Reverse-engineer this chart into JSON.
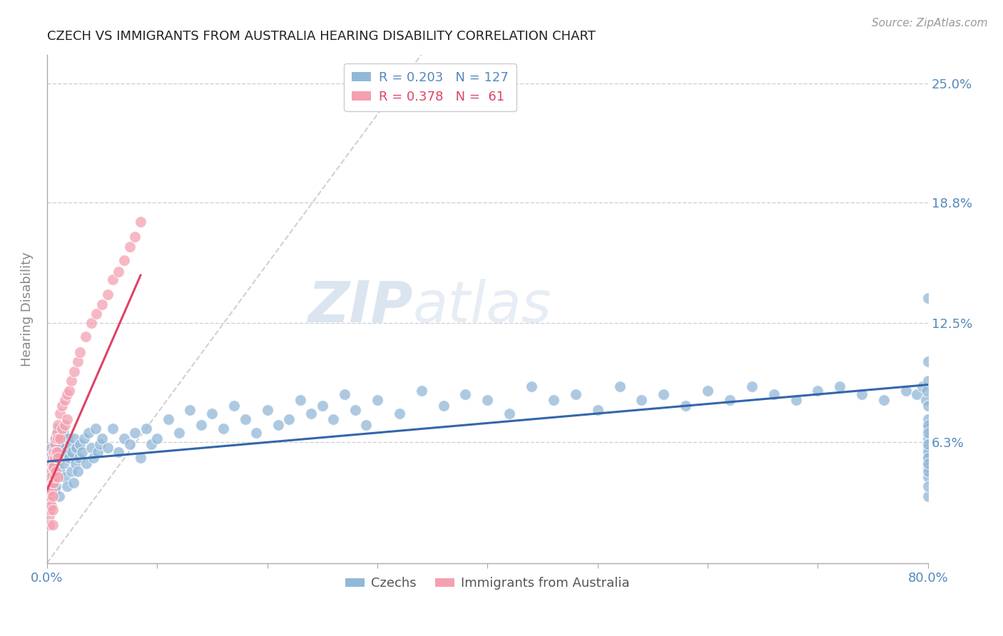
{
  "title": "CZECH VS IMMIGRANTS FROM AUSTRALIA HEARING DISABILITY CORRELATION CHART",
  "source": "Source: ZipAtlas.com",
  "ylabel": "Hearing Disability",
  "xlim": [
    0.0,
    0.8
  ],
  "ylim": [
    0.0,
    0.265
  ],
  "ytick_positions": [
    0.063,
    0.125,
    0.188,
    0.25
  ],
  "ytick_labels": [
    "6.3%",
    "12.5%",
    "18.8%",
    "25.0%"
  ],
  "R_blue": 0.203,
  "N_blue": 127,
  "R_pink": 0.378,
  "N_pink": 61,
  "blue_color": "#92B8D8",
  "pink_color": "#F4A0B0",
  "blue_trend_color": "#3366AA",
  "pink_trend_color": "#DD4466",
  "legend_label_blue": "Czechs",
  "legend_label_pink": "Immigrants from Australia",
  "watermark_text": "ZIPatlas",
  "background_color": "#FFFFFF",
  "grid_color": "#CCCCCC",
  "title_color": "#222222",
  "axis_label_color": "#5588BB",
  "blue_x": [
    0.002,
    0.003,
    0.004,
    0.005,
    0.005,
    0.006,
    0.006,
    0.007,
    0.007,
    0.008,
    0.008,
    0.009,
    0.009,
    0.01,
    0.01,
    0.01,
    0.011,
    0.011,
    0.012,
    0.012,
    0.013,
    0.014,
    0.015,
    0.015,
    0.016,
    0.017,
    0.018,
    0.019,
    0.02,
    0.021,
    0.022,
    0.023,
    0.024,
    0.025,
    0.026,
    0.027,
    0.028,
    0.029,
    0.03,
    0.032,
    0.034,
    0.036,
    0.038,
    0.04,
    0.042,
    0.044,
    0.046,
    0.048,
    0.05,
    0.055,
    0.06,
    0.065,
    0.07,
    0.075,
    0.08,
    0.085,
    0.09,
    0.095,
    0.1,
    0.11,
    0.12,
    0.13,
    0.14,
    0.15,
    0.16,
    0.17,
    0.18,
    0.19,
    0.2,
    0.21,
    0.22,
    0.23,
    0.24,
    0.25,
    0.26,
    0.27,
    0.28,
    0.29,
    0.3,
    0.32,
    0.34,
    0.36,
    0.38,
    0.4,
    0.42,
    0.44,
    0.46,
    0.48,
    0.5,
    0.52,
    0.54,
    0.56,
    0.58,
    0.6,
    0.62,
    0.64,
    0.66,
    0.68,
    0.7,
    0.72,
    0.74,
    0.76,
    0.78,
    0.79,
    0.795,
    0.798,
    0.799,
    0.8,
    0.8,
    0.8,
    0.8,
    0.8,
    0.8,
    0.8,
    0.8,
    0.8,
    0.8,
    0.8,
    0.8,
    0.8,
    0.8,
    0.8,
    0.8,
    0.8,
    0.8,
    0.8,
    0.8
  ],
  "blue_y": [
    0.055,
    0.048,
    0.06,
    0.052,
    0.045,
    0.058,
    0.042,
    0.065,
    0.038,
    0.062,
    0.04,
    0.055,
    0.068,
    0.05,
    0.045,
    0.07,
    0.058,
    0.035,
    0.062,
    0.048,
    0.055,
    0.06,
    0.052,
    0.068,
    0.045,
    0.058,
    0.04,
    0.065,
    0.055,
    0.062,
    0.048,
    0.058,
    0.042,
    0.065,
    0.052,
    0.06,
    0.048,
    0.055,
    0.062,
    0.058,
    0.065,
    0.052,
    0.068,
    0.06,
    0.055,
    0.07,
    0.058,
    0.062,
    0.065,
    0.06,
    0.07,
    0.058,
    0.065,
    0.062,
    0.068,
    0.055,
    0.07,
    0.062,
    0.065,
    0.075,
    0.068,
    0.08,
    0.072,
    0.078,
    0.07,
    0.082,
    0.075,
    0.068,
    0.08,
    0.072,
    0.075,
    0.085,
    0.078,
    0.082,
    0.075,
    0.088,
    0.08,
    0.072,
    0.085,
    0.078,
    0.09,
    0.082,
    0.088,
    0.085,
    0.078,
    0.092,
    0.085,
    0.088,
    0.08,
    0.092,
    0.085,
    0.088,
    0.082,
    0.09,
    0.085,
    0.092,
    0.088,
    0.085,
    0.09,
    0.092,
    0.088,
    0.085,
    0.09,
    0.088,
    0.092,
    0.085,
    0.09,
    0.138,
    0.06,
    0.055,
    0.075,
    0.082,
    0.095,
    0.105,
    0.045,
    0.058,
    0.065,
    0.07,
    0.055,
    0.05,
    0.048,
    0.072,
    0.068,
    0.035,
    0.04,
    0.052,
    0.062
  ],
  "pink_x": [
    0.001,
    0.001,
    0.001,
    0.002,
    0.002,
    0.002,
    0.002,
    0.002,
    0.003,
    0.003,
    0.003,
    0.003,
    0.004,
    0.004,
    0.004,
    0.004,
    0.005,
    0.005,
    0.005,
    0.005,
    0.005,
    0.005,
    0.006,
    0.006,
    0.006,
    0.007,
    0.007,
    0.007,
    0.008,
    0.008,
    0.008,
    0.009,
    0.009,
    0.01,
    0.01,
    0.01,
    0.01,
    0.012,
    0.012,
    0.014,
    0.014,
    0.016,
    0.016,
    0.018,
    0.018,
    0.02,
    0.022,
    0.025,
    0.028,
    0.03,
    0.035,
    0.04,
    0.045,
    0.05,
    0.055,
    0.06,
    0.065,
    0.07,
    0.075,
    0.08,
    0.085
  ],
  "pink_y": [
    0.04,
    0.035,
    0.028,
    0.042,
    0.038,
    0.032,
    0.025,
    0.02,
    0.048,
    0.042,
    0.035,
    0.028,
    0.052,
    0.045,
    0.038,
    0.03,
    0.055,
    0.05,
    0.042,
    0.035,
    0.028,
    0.02,
    0.058,
    0.05,
    0.042,
    0.062,
    0.055,
    0.045,
    0.065,
    0.058,
    0.048,
    0.068,
    0.058,
    0.072,
    0.065,
    0.055,
    0.045,
    0.078,
    0.065,
    0.082,
    0.07,
    0.085,
    0.072,
    0.088,
    0.075,
    0.09,
    0.095,
    0.1,
    0.105,
    0.11,
    0.118,
    0.125,
    0.13,
    0.135,
    0.14,
    0.148,
    0.152,
    0.158,
    0.165,
    0.17,
    0.178
  ],
  "blue_trend_x": [
    0.0,
    0.8
  ],
  "blue_trend_y": [
    0.053,
    0.093
  ],
  "pink_trend_x": [
    0.0,
    0.085
  ],
  "pink_trend_y": [
    0.038,
    0.15
  ],
  "ref_line_x": [
    0.0,
    0.34
  ],
  "ref_line_y": [
    0.0,
    0.265
  ]
}
